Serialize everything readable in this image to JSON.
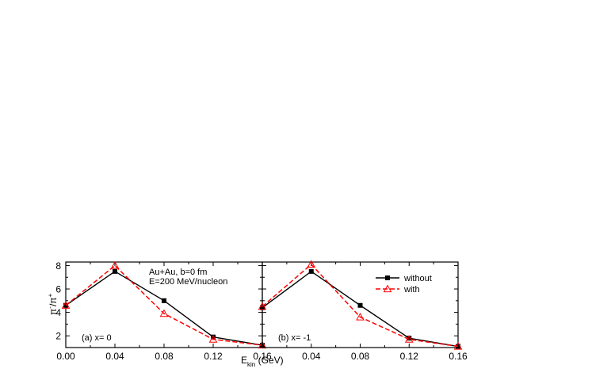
{
  "chart_data": {
    "type": "line",
    "panels": [
      {
        "label": "(a) x= 0",
        "annotation": [
          "Au+Au, b=0 fm",
          "E=200 MeV/nucleon"
        ],
        "x": [
          0.0,
          0.04,
          0.08,
          0.12,
          0.16
        ],
        "series": [
          {
            "name": "without",
            "values": [
              4.6,
              7.5,
              5.0,
              1.9,
              1.2
            ],
            "color": "#000000",
            "style": "solid",
            "marker": "square"
          },
          {
            "name": "with",
            "values": [
              4.6,
              8.0,
              3.9,
              1.7,
              1.2
            ],
            "color": "#ff0000",
            "style": "dashed",
            "marker": "triangle"
          }
        ]
      },
      {
        "label": "(b) x= -1",
        "x": [
          0.0,
          0.04,
          0.08,
          0.12,
          0.16
        ],
        "series": [
          {
            "name": "without",
            "values": [
              4.4,
              7.5,
              4.6,
              1.8,
              1.1
            ],
            "color": "#000000",
            "style": "solid",
            "marker": "square"
          },
          {
            "name": "with",
            "values": [
              4.5,
              8.1,
              3.6,
              1.7,
              1.1
            ],
            "color": "#ff0000",
            "style": "dashed",
            "marker": "triangle"
          }
        ]
      }
    ],
    "xlim": [
      0.0,
      0.16
    ],
    "ylim": [
      1.0,
      8.3
    ],
    "xticks": [
      {
        "value": 0.0,
        "label": "0.00"
      },
      {
        "value": 0.04,
        "label": "0.04"
      },
      {
        "value": 0.08,
        "label": "0.08"
      },
      {
        "value": 0.12,
        "label": "0.12"
      },
      {
        "value": 0.16,
        "label": "0.16"
      }
    ],
    "yticks": [
      {
        "value": 2,
        "label": "2"
      },
      {
        "value": 4,
        "label": "4"
      },
      {
        "value": 6,
        "label": "6"
      },
      {
        "value": 8,
        "label": "8"
      }
    ],
    "xlabel": {
      "main": "E",
      "sub": "kin",
      "unit": "(GeV)"
    },
    "ylabel": {
      "num": "π",
      "num_sup": "-",
      "den": "π",
      "den_sup": "+"
    },
    "legend": {
      "placement": "top-right of panel b",
      "entries": [
        {
          "label": "without",
          "color": "#000000",
          "style": "solid",
          "marker": "square"
        },
        {
          "label": "with",
          "color": "#ff0000",
          "style": "dashed",
          "marker": "triangle"
        }
      ]
    },
    "grid": false
  }
}
